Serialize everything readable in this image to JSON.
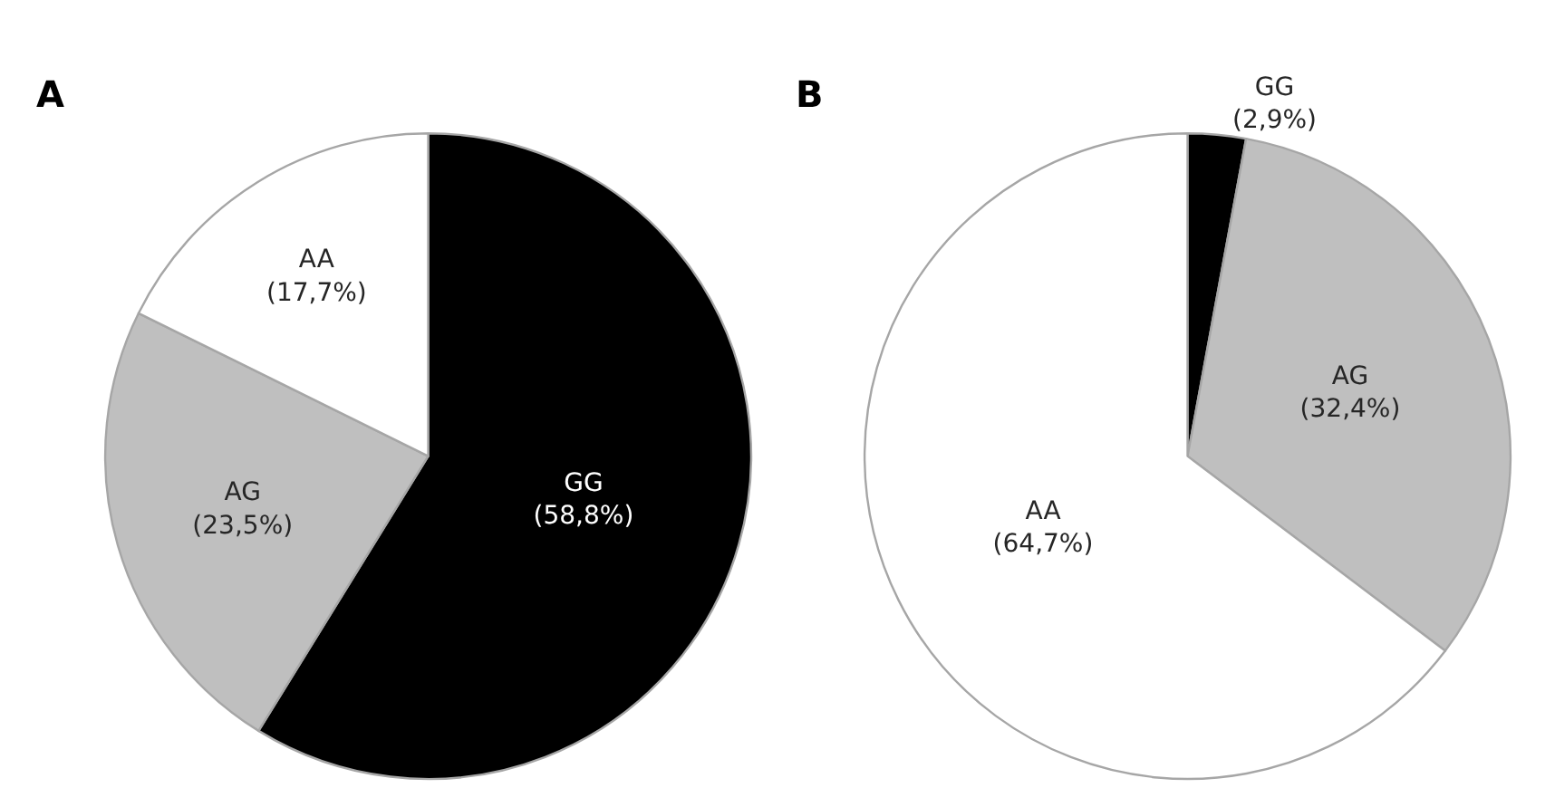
{
  "chart_data": [
    {
      "type": "pie",
      "title": "A",
      "categories": [
        "GG",
        "AG",
        "AA"
      ],
      "values": [
        58.8,
        23.5,
        17.7
      ],
      "colors": [
        "#000000",
        "#bfbfbf",
        "#ffffff"
      ],
      "value_labels": [
        "(58,8%)",
        "(23,5%)",
        "(17,7%)"
      ],
      "legend": false
    },
    {
      "type": "pie",
      "title": "B",
      "categories": [
        "GG",
        "AG",
        "AA"
      ],
      "values": [
        2.9,
        32.4,
        64.7
      ],
      "colors": [
        "#000000",
        "#bfbfbf",
        "#ffffff"
      ],
      "value_labels": [
        "(2,9%)",
        "(32,4%)",
        "(64,7%)"
      ],
      "legend": false
    }
  ]
}
